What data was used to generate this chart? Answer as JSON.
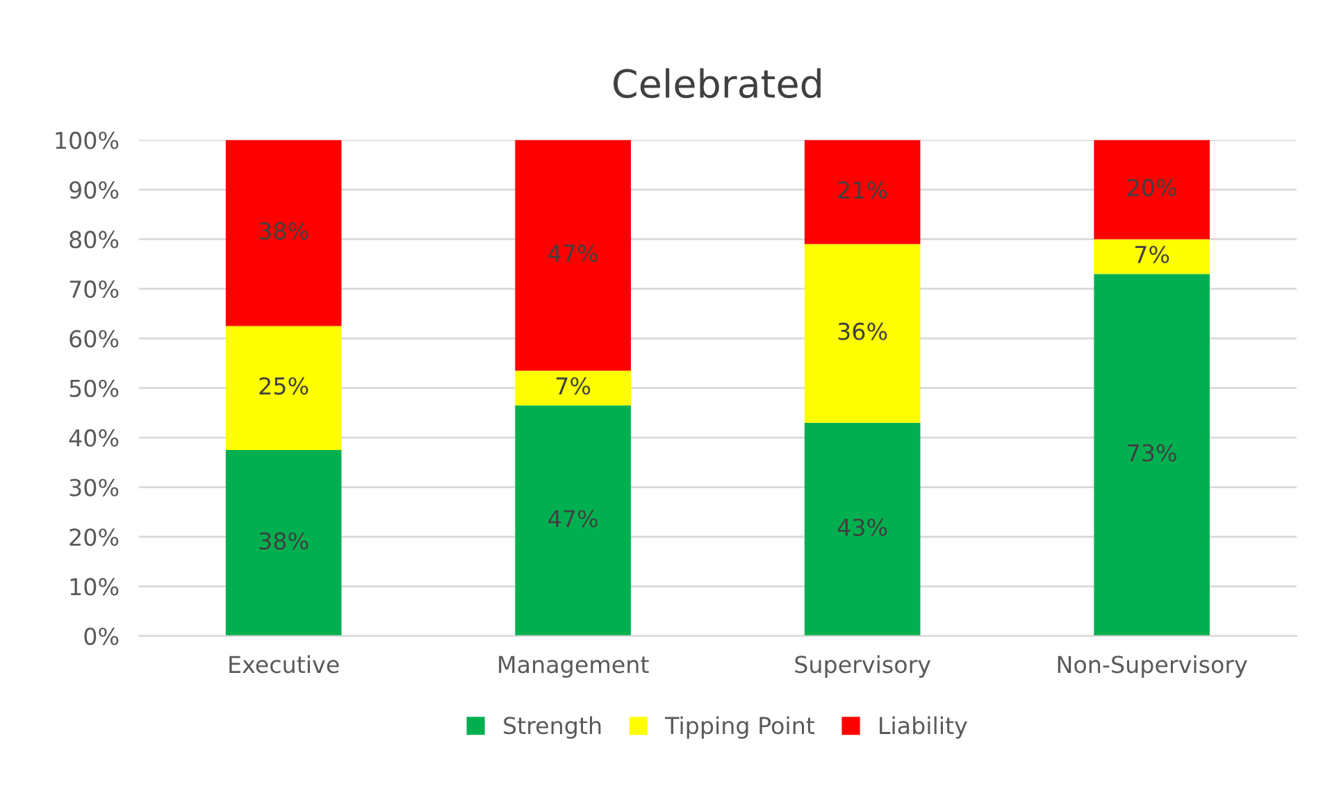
{
  "chart_data": {
    "type": "bar",
    "title": "Celebrated",
    "stacked": true,
    "categories": [
      "Executive",
      "Management",
      "Supervisory",
      "Non-Supervisory"
    ],
    "series": [
      {
        "name": "Strength",
        "color": "#00b050",
        "values": [
          37.5,
          46.5,
          43,
          73
        ],
        "value_labels": [
          "38%",
          "47%",
          "43%",
          "73%"
        ]
      },
      {
        "name": "Tipping Point",
        "color": "#ffff00",
        "values": [
          25,
          7,
          36,
          7
        ],
        "value_labels": [
          "25%",
          "7%",
          "36%",
          "7%"
        ]
      },
      {
        "name": "Liability",
        "color": "#ff0000",
        "values": [
          37.5,
          46.5,
          21,
          20
        ],
        "value_labels": [
          "38%",
          "47%",
          "21%",
          "20%"
        ]
      }
    ],
    "ylim": [
      0,
      100
    ],
    "yticks": [
      {
        "value": 0,
        "label": "0%"
      },
      {
        "value": 10,
        "label": "10%"
      },
      {
        "value": 20,
        "label": "20%"
      },
      {
        "value": 30,
        "label": "30%"
      },
      {
        "value": 40,
        "label": "40%"
      },
      {
        "value": 50,
        "label": "50%"
      },
      {
        "value": 60,
        "label": "60%"
      },
      {
        "value": 70,
        "label": "70%"
      },
      {
        "value": 80,
        "label": "80%"
      },
      {
        "value": 90,
        "label": "90%"
      },
      {
        "value": 100,
        "label": "100%"
      }
    ],
    "grid": "y",
    "legend": "bottom"
  }
}
